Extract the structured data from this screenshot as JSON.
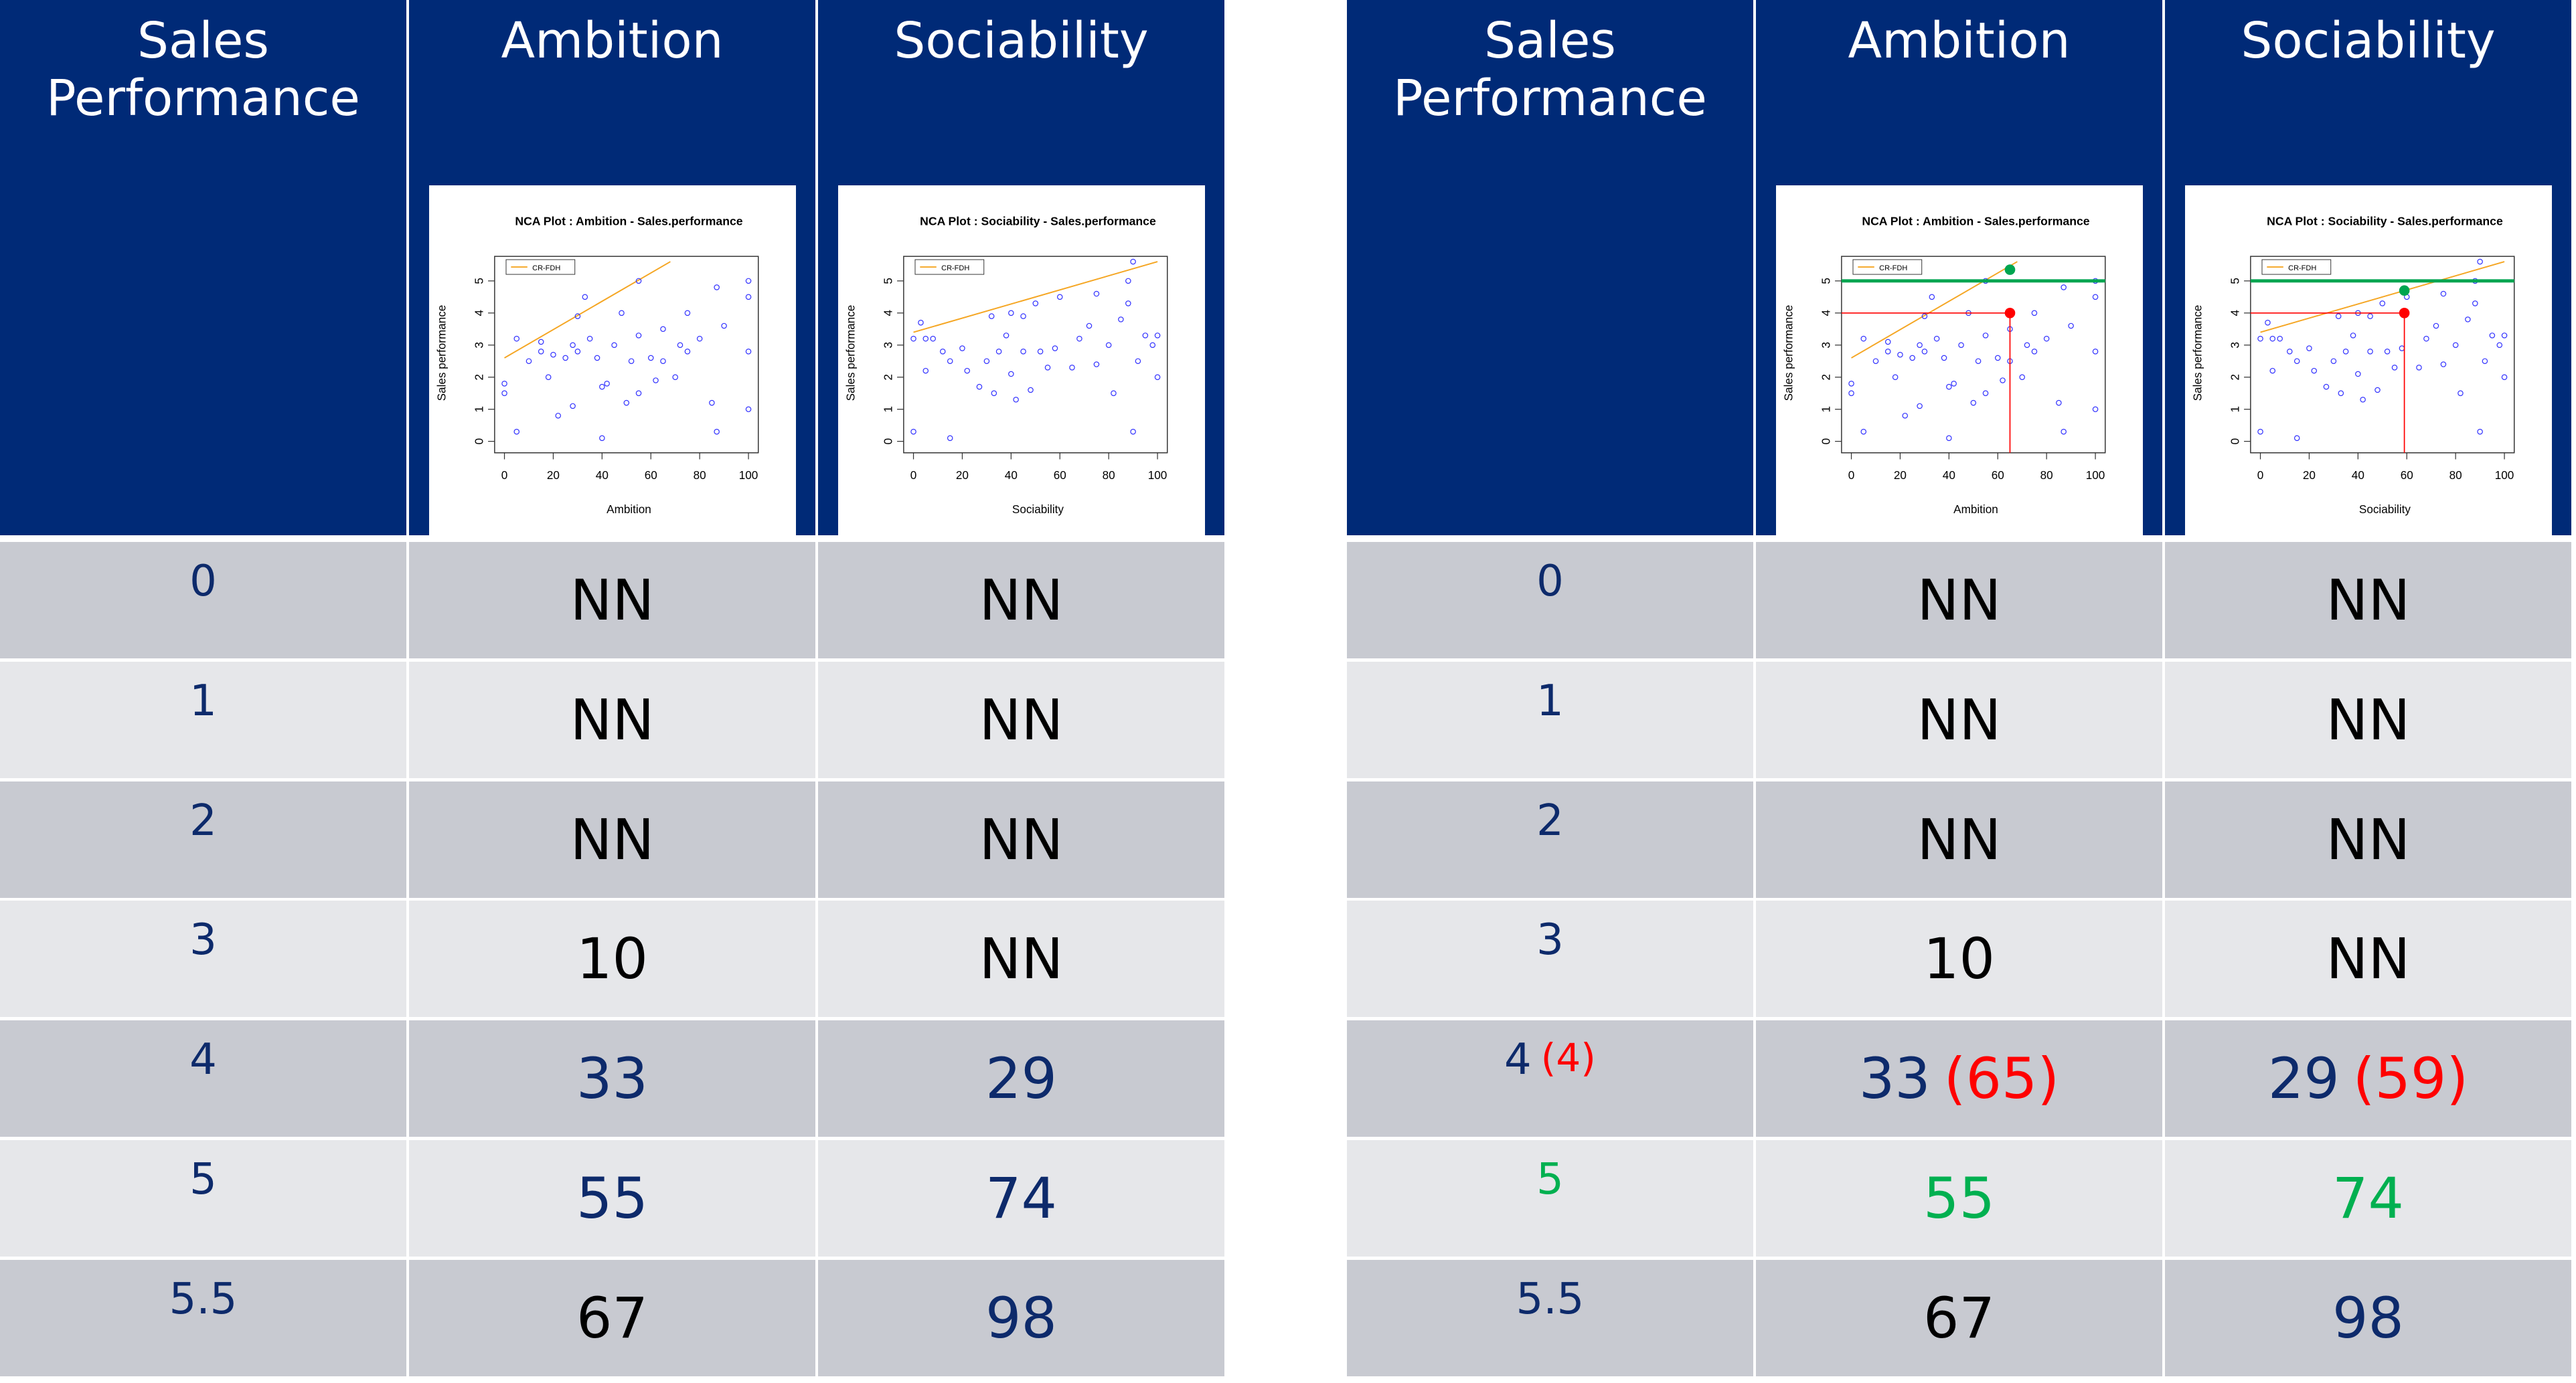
{
  "tables": [
    {
      "header": [
        "Sales Performance",
        "Ambition",
        "Sociability"
      ],
      "rows": [
        [
          [
            {
              "text": "0",
              "color": "#0d2a6b"
            }
          ],
          [
            {
              "text": "NN",
              "color": "#000000"
            }
          ],
          [
            {
              "text": "NN",
              "color": "#000000"
            }
          ]
        ],
        [
          [
            {
              "text": "1",
              "color": "#0d2a6b"
            }
          ],
          [
            {
              "text": "NN",
              "color": "#000000"
            }
          ],
          [
            {
              "text": "NN",
              "color": "#000000"
            }
          ]
        ],
        [
          [
            {
              "text": "2",
              "color": "#0d2a6b"
            }
          ],
          [
            {
              "text": "NN",
              "color": "#000000"
            }
          ],
          [
            {
              "text": "NN",
              "color": "#000000"
            }
          ]
        ],
        [
          [
            {
              "text": "3",
              "color": "#0d2a6b"
            }
          ],
          [
            {
              "text": "10",
              "color": "#000000"
            }
          ],
          [
            {
              "text": "NN",
              "color": "#000000"
            }
          ]
        ],
        [
          [
            {
              "text": "4",
              "color": "#0d2a6b"
            }
          ],
          [
            {
              "text": "33",
              "color": "#0d2a6b"
            }
          ],
          [
            {
              "text": "29",
              "color": "#0d2a6b"
            }
          ]
        ],
        [
          [
            {
              "text": "5",
              "color": "#0d2a6b"
            }
          ],
          [
            {
              "text": "55",
              "color": "#0d2a6b"
            }
          ],
          [
            {
              "text": "74",
              "color": "#0d2a6b"
            }
          ]
        ],
        [
          [
            {
              "text": "5.5",
              "color": "#0d2a6b"
            }
          ],
          [
            {
              "text": "67",
              "color": "#000000"
            }
          ],
          [
            {
              "text": "98",
              "color": "#0d2a6b"
            }
          ]
        ]
      ]
    },
    {
      "header": [
        "Sales Performance",
        "Ambition",
        "Sociability"
      ],
      "rows": [
        [
          [
            {
              "text": "0",
              "color": "#0d2a6b"
            }
          ],
          [
            {
              "text": "NN",
              "color": "#000000"
            }
          ],
          [
            {
              "text": "NN",
              "color": "#000000"
            }
          ]
        ],
        [
          [
            {
              "text": "1",
              "color": "#0d2a6b"
            }
          ],
          [
            {
              "text": "NN",
              "color": "#000000"
            }
          ],
          [
            {
              "text": "NN",
              "color": "#000000"
            }
          ]
        ],
        [
          [
            {
              "text": "2",
              "color": "#0d2a6b"
            }
          ],
          [
            {
              "text": "NN",
              "color": "#000000"
            }
          ],
          [
            {
              "text": "NN",
              "color": "#000000"
            }
          ]
        ],
        [
          [
            {
              "text": "3",
              "color": "#0d2a6b"
            }
          ],
          [
            {
              "text": "10",
              "color": "#000000"
            }
          ],
          [
            {
              "text": "NN",
              "color": "#000000"
            }
          ]
        ],
        [
          [
            {
              "text": "4",
              "color": "#0d2a6b"
            },
            {
              "text": "(4)",
              "color": "#ff0000"
            }
          ],
          [
            {
              "text": "33",
              "color": "#0d2a6b"
            },
            {
              "text": "(65)",
              "color": "#ff0000"
            }
          ],
          [
            {
              "text": "29",
              "color": "#0d2a6b"
            },
            {
              "text": "(59)",
              "color": "#ff0000"
            }
          ]
        ],
        [
          [
            {
              "text": "5",
              "color": "#00b050"
            }
          ],
          [
            {
              "text": "55",
              "color": "#00b050"
            }
          ],
          [
            {
              "text": "74",
              "color": "#00b050"
            }
          ]
        ],
        [
          [
            {
              "text": "5.5",
              "color": "#0d2a6b"
            }
          ],
          [
            {
              "text": "67",
              "color": "#000000"
            }
          ],
          [
            {
              "text": "98",
              "color": "#0d2a6b"
            }
          ]
        ]
      ],
      "highlights": [
        {
          "red": {
            "x": 65,
            "y": 4
          },
          "green": {
            "x": 65,
            "y": 5.35,
            "line": 5
          }
        },
        {
          "red": {
            "x": 59,
            "y": 4
          },
          "green": {
            "x": 59,
            "y": 4.7,
            "line": 5
          }
        }
      ]
    }
  ],
  "plots": [
    {
      "type": "scatter",
      "title": "NCA Plot : Ambition - Sales.performance",
      "x_label": "Ambition",
      "y_label": "Sales performance",
      "legend": "CR-FDH",
      "xlim": [
        0,
        100
      ],
      "ylim": [
        0,
        5.5
      ],
      "xticks": [
        0,
        20,
        40,
        60,
        80,
        100
      ],
      "yticks": [
        0,
        1,
        2,
        3,
        4,
        5
      ],
      "color": "#3333ff",
      "ceiling_color": "#f5a623",
      "ceiling": {
        "x": [
          0,
          68
        ],
        "y": [
          2.6,
          5.6
        ]
      },
      "x": [
        0,
        0,
        5,
        5,
        10,
        15,
        15,
        18,
        20,
        22,
        25,
        28,
        28,
        30,
        30,
        33,
        35,
        38,
        40,
        40,
        42,
        45,
        48,
        50,
        52,
        55,
        55,
        55,
        60,
        62,
        65,
        65,
        70,
        72,
        75,
        75,
        80,
        85,
        87,
        87,
        90,
        100,
        100,
        100,
        100
      ],
      "y": [
        1.8,
        1.5,
        0.3,
        3.2,
        2.5,
        2.8,
        3.1,
        2.0,
        2.7,
        0.8,
        2.6,
        1.1,
        3.0,
        2.8,
        3.9,
        4.5,
        3.2,
        2.6,
        1.7,
        0.1,
        1.8,
        3.0,
        4.0,
        1.2,
        2.5,
        1.5,
        3.3,
        5.0,
        2.6,
        1.9,
        2.5,
        3.5,
        2.0,
        3.0,
        2.8,
        4.0,
        3.2,
        1.2,
        4.8,
        0.3,
        3.6,
        5.0,
        4.5,
        2.8,
        1.0
      ]
    },
    {
      "type": "scatter",
      "title": "NCA Plot : Sociability - Sales.performance",
      "x_label": "Sociability",
      "y_label": "Sales performance",
      "legend": "CR-FDH",
      "xlim": [
        0,
        100
      ],
      "ylim": [
        0,
        5.5
      ],
      "xticks": [
        0,
        20,
        40,
        60,
        80,
        100
      ],
      "yticks": [
        0,
        1,
        2,
        3,
        4,
        5
      ],
      "color": "#3333ff",
      "ceiling_color": "#f5a623",
      "ceiling": {
        "x": [
          0,
          100
        ],
        "y": [
          3.4,
          5.6
        ]
      },
      "x": [
        0,
        0,
        3,
        5,
        5,
        8,
        12,
        15,
        15,
        20,
        22,
        27,
        30,
        32,
        33,
        35,
        38,
        40,
        40,
        42,
        45,
        45,
        48,
        50,
        52,
        55,
        58,
        60,
        65,
        68,
        72,
        75,
        75,
        80,
        82,
        85,
        88,
        88,
        90,
        90,
        92,
        95,
        98,
        100,
        100
      ],
      "y": [
        3.2,
        0.3,
        3.7,
        2.2,
        3.2,
        3.2,
        2.8,
        0.1,
        2.5,
        2.9,
        2.2,
        1.7,
        2.5,
        3.9,
        1.5,
        2.8,
        3.3,
        2.1,
        4.0,
        1.3,
        2.8,
        3.9,
        1.6,
        4.3,
        2.8,
        2.3,
        2.9,
        4.5,
        2.3,
        3.2,
        3.6,
        4.6,
        2.4,
        3.0,
        1.5,
        3.8,
        5.0,
        4.3,
        5.6,
        0.3,
        2.5,
        3.3,
        3.0,
        2.0,
        3.3
      ]
    }
  ],
  "header_color": "#002a77",
  "row_colors": [
    "#c8cad1",
    "#e6e7ea"
  ]
}
